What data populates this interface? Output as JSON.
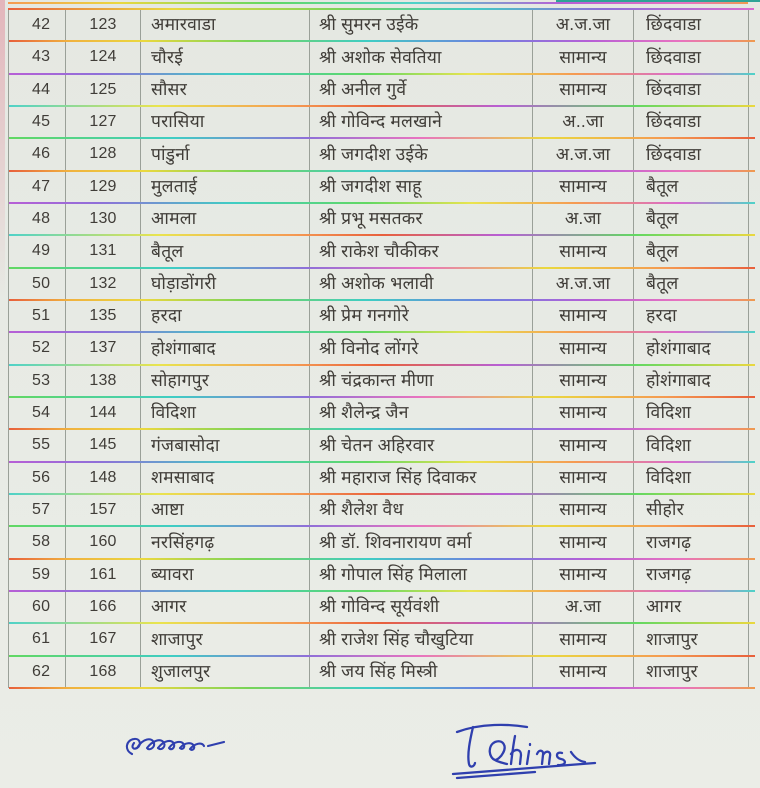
{
  "colors": {
    "paper": "#e8ebe5",
    "grid_line": "#9aa098",
    "text": "#403d38",
    "signature_ink": "#2f3fae",
    "scan_rainbow_palette": [
      "#e8603c",
      "#f0b13f",
      "#ead83f",
      "#62d862",
      "#3fcdc4",
      "#8f6fd8",
      "#b75fd6",
      "#e873c0"
    ]
  },
  "table": {
    "column_names": [
      "serial-no",
      "code",
      "constituency",
      "candidate",
      "category",
      "district"
    ],
    "rows": [
      [
        "42",
        "123",
        "अमारवाडा",
        "श्री सुमरन उईके",
        "अ.ज.जा",
        "छिंदवाडा"
      ],
      [
        "43",
        "124",
        "चौरई",
        "श्री अशोक सेवतिया",
        "सामान्य",
        "छिंदवाडा"
      ],
      [
        "44",
        "125",
        "सौसर",
        "श्री अनील गुर्वे",
        "सामान्य",
        "छिंदवाडा"
      ],
      [
        "45",
        "127",
        "परासिया",
        "श्री गोविन्द मलखाने",
        "अ..जा",
        "छिंदवाडा"
      ],
      [
        "46",
        "128",
        "पांडुर्ना",
        "श्री जगदीश उईके",
        "अ.ज.जा",
        "छिंदवाडा"
      ],
      [
        "47",
        "129",
        "मुलताई",
        "श्री जगदीश साहू",
        "सामान्य",
        "बैतूल"
      ],
      [
        "48",
        "130",
        "आमला",
        "श्री प्रभू मसतकर",
        "अ.जा",
        "बैतूल"
      ],
      [
        "49",
        "131",
        "बैतूल",
        "श्री राकेश चौकीकर",
        "सामान्य",
        "बैतूल"
      ],
      [
        "50",
        "132",
        "घोड़ाडोंगरी",
        "श्री अशोक भलावी",
        "अ.ज.जा",
        "बैतूल"
      ],
      [
        "51",
        "135",
        "हरदा",
        "श्री प्रेम गनगोरे",
        "सामान्य",
        "हरदा"
      ],
      [
        "52",
        "137",
        "होशंगाबाद",
        "श्री विनोद लोंगरे",
        "सामान्य",
        "होशंगाबाद"
      ],
      [
        "53",
        "138",
        "सोहागपुर",
        "श्री चंद्रकान्त मीणा",
        "सामान्य",
        "होशंगाबाद"
      ],
      [
        "54",
        "144",
        "विदिशा",
        "श्री शैलेन्द्र जैन",
        "सामान्य",
        "विदिशा"
      ],
      [
        "55",
        "145",
        "गंजबासोदा",
        "श्री चेतन अहिरवार",
        "सामान्य",
        "विदिशा"
      ],
      [
        "56",
        "148",
        "शमसाबाद",
        "श्री महाराज सिंह दिवाकर",
        "सामान्य",
        "विदिशा"
      ],
      [
        "57",
        "157",
        "आष्टा",
        "श्री शैलेश वैध",
        "सामान्य",
        "सीहोर"
      ],
      [
        "58",
        "160",
        "नरसिंहगढ़",
        "श्री डॉ. शिवनारायण वर्मा",
        "सामान्य",
        "राजगढ़"
      ],
      [
        "59",
        "161",
        "ब्यावरा",
        "श्री गोपाल सिंह मिलाला",
        "सामान्य",
        "राजगढ़"
      ],
      [
        "60",
        "166",
        "आगर",
        "श्री गोविन्द सूर्यवंशी",
        "अ.जा",
        "आगर"
      ],
      [
        "61",
        "167",
        "शाजापुर",
        "श्री राजेश सिंह चौखुटिया",
        "सामान्य",
        "शाजापुर"
      ],
      [
        "62",
        "168",
        "शुजालपुर",
        "श्री जय सिंह मिस्त्री",
        "सामान्य",
        "शाजापुर"
      ]
    ]
  },
  "signatures": {
    "left": {
      "ink_color": "#2f3fae"
    },
    "right": {
      "ink_color": "#2f3fae"
    }
  }
}
